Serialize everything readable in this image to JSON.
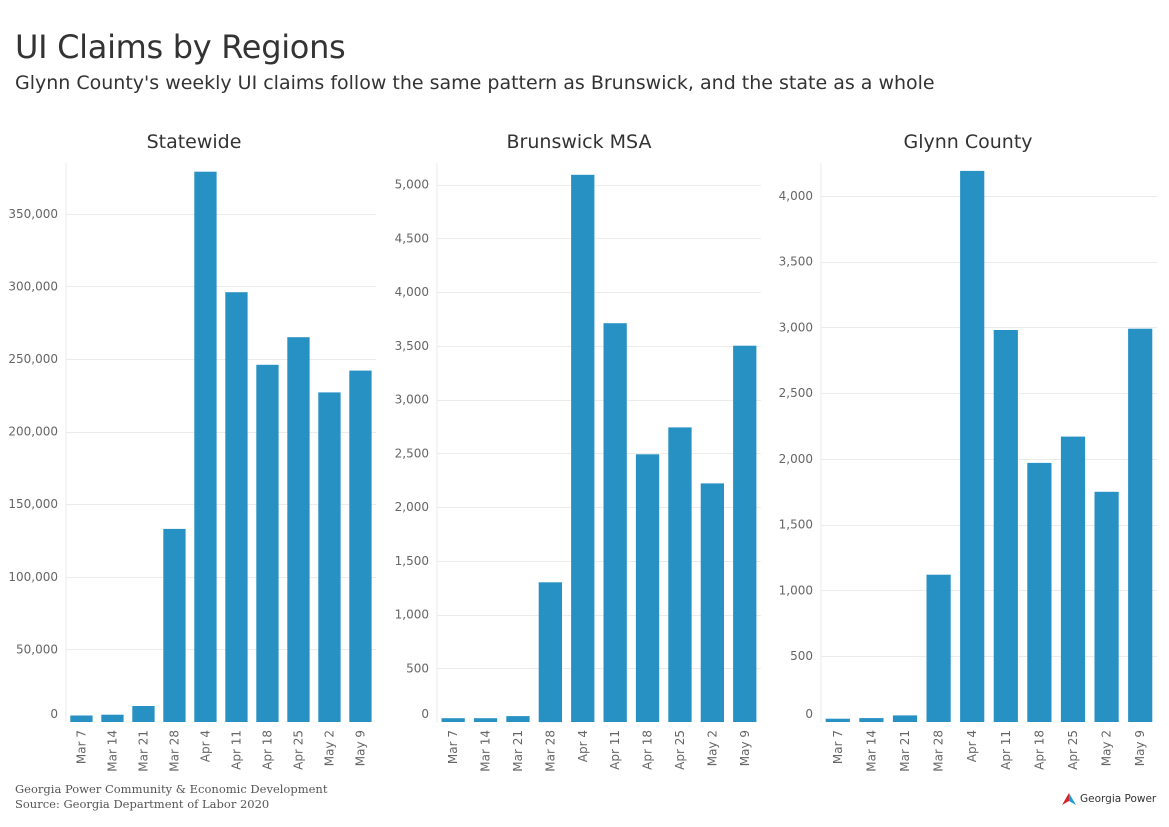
{
  "header": {
    "title": "UI Claims by Regions",
    "subtitle": "Glynn County's weekly UI claims follow the same pattern as Brunswick, and the state as a whole"
  },
  "footer": {
    "line1": "Georgia Power Community & Economic Development",
    "line2": "Source: Georgia Department of Labor 2020"
  },
  "brand": {
    "name": "Georgia Power",
    "colors": {
      "red": "#d2232a",
      "blue": "#1f9bd6"
    }
  },
  "colors": {
    "bar": "#2791c4",
    "grid": "#ebebeb",
    "axis_text": "#666666"
  },
  "chart_data": [
    {
      "type": "bar",
      "title": "Statewide",
      "categories": [
        "Mar 7",
        "Mar 14",
        "Mar 21",
        "Mar 28",
        "Apr 4",
        "Apr 11",
        "Apr 18",
        "Apr 25",
        "May 2",
        "May 9"
      ],
      "values": [
        4500,
        5000,
        11000,
        133000,
        379000,
        296000,
        246000,
        265000,
        227000,
        242000
      ],
      "ylim": [
        0,
        385000
      ],
      "yticks": [
        0,
        50000,
        100000,
        150000,
        200000,
        250000,
        300000,
        350000
      ],
      "grid": true
    },
    {
      "type": "bar",
      "title": "Brunswick MSA",
      "categories": [
        "Mar 7",
        "Mar 14",
        "Mar 21",
        "Mar 28",
        "Apr 4",
        "Apr 11",
        "Apr 18",
        "Apr 25",
        "May 2",
        "May 9"
      ],
      "values": [
        35,
        35,
        55,
        1300,
        5090,
        3710,
        2490,
        2740,
        2220,
        3500
      ],
      "ylim": [
        0,
        5200
      ],
      "yticks": [
        0,
        500,
        1000,
        1500,
        2000,
        2500,
        3000,
        3500,
        4000,
        4500,
        5000
      ],
      "grid": true
    },
    {
      "type": "bar",
      "title": "Glynn County",
      "categories": [
        "Mar 7",
        "Mar 14",
        "Mar 21",
        "Mar 28",
        "Apr 4",
        "Apr 11",
        "Apr 18",
        "Apr 25",
        "May 2",
        "May 9"
      ],
      "values": [
        25,
        30,
        50,
        1120,
        4190,
        2980,
        1970,
        2170,
        1750,
        2990
      ],
      "ylim": [
        0,
        4250
      ],
      "yticks": [
        0,
        500,
        1000,
        1500,
        2000,
        2500,
        3000,
        3500,
        4000
      ],
      "grid": true
    }
  ]
}
